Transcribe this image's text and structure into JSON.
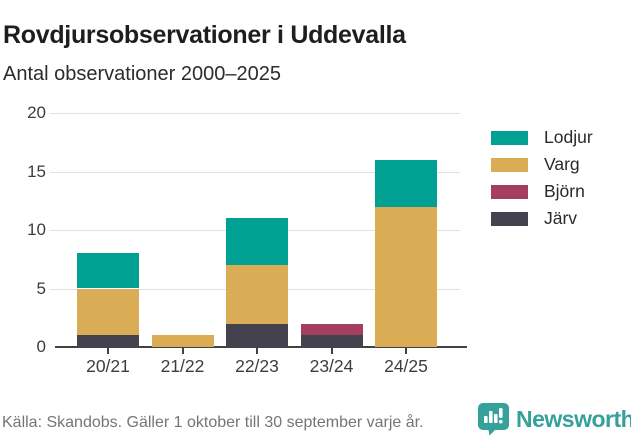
{
  "chart_data": {
    "type": "bar",
    "stacked": true,
    "title": "Rovdjursobservationer i Uddevalla",
    "subtitle": "Antal observationer 2000–2025",
    "categories": [
      "20/21",
      "21/22",
      "22/23",
      "23/24",
      "24/25"
    ],
    "series": [
      {
        "name": "Järv",
        "color": "#454250",
        "values": [
          1,
          0,
          2,
          1,
          0
        ]
      },
      {
        "name": "Björn",
        "color": "#a43f62",
        "values": [
          0,
          0,
          0,
          1,
          0
        ]
      },
      {
        "name": "Varg",
        "color": "#d9ac55",
        "values": [
          4,
          1,
          5,
          0,
          12
        ]
      },
      {
        "name": "Lodjur",
        "color": "#00a192",
        "values": [
          3,
          0,
          4,
          0,
          4
        ]
      }
    ],
    "stack_order": "bottom-to-top",
    "totals": [
      8,
      1,
      11,
      2,
      16
    ],
    "yticks": [
      0,
      5,
      10,
      15,
      20
    ],
    "ylim": [
      0,
      20
    ],
    "xlabel": "",
    "ylabel": "",
    "grid": true,
    "legend_position": "right"
  },
  "legend": {
    "items": [
      {
        "label": "Lodjur",
        "color": "#00a192"
      },
      {
        "label": "Varg",
        "color": "#d9ac55"
      },
      {
        "label": "Björn",
        "color": "#a43f62"
      },
      {
        "label": "Järv",
        "color": "#454250"
      }
    ]
  },
  "footer": {
    "source": "Källa: Skandobs. Gäller 1 oktober till 30 september varje år.",
    "brand": "Newsworthy",
    "brand_color": "#36a09a"
  }
}
